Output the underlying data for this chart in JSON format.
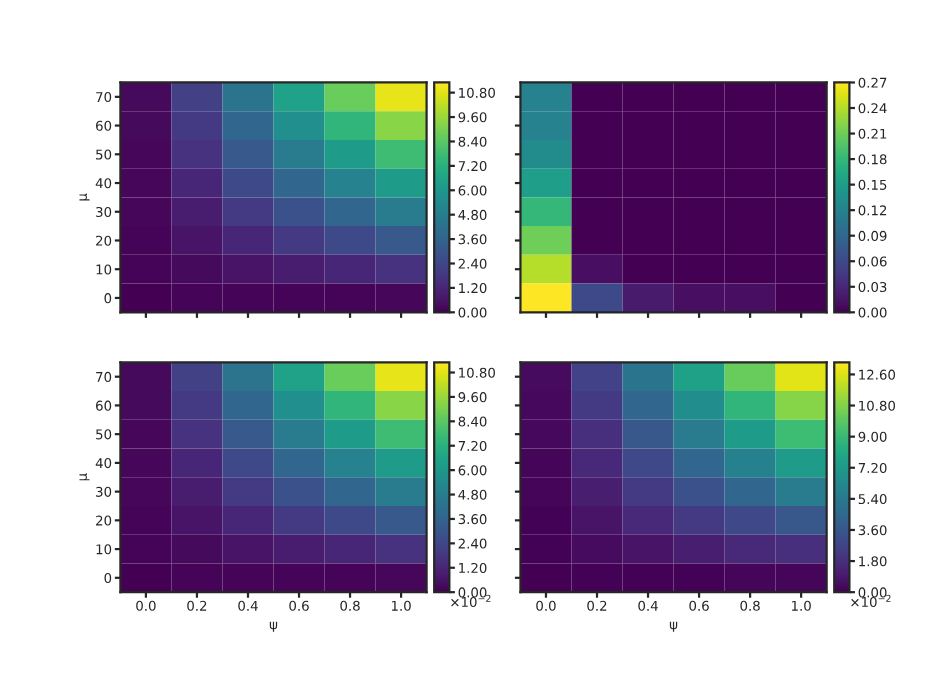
{
  "chart_data": [
    {
      "type": "heatmap",
      "ylabel": "μ",
      "categories": [
        null,
        null,
        null,
        null,
        null,
        null
      ],
      "y_categories": [
        "70",
        "60",
        "50",
        "40",
        "30",
        "20",
        "10",
        "0"
      ],
      "cells": [
        [
          0.3,
          2.2,
          4.3,
          6.5,
          8.7,
          10.9
        ],
        [
          0.3,
          1.9,
          3.7,
          5.6,
          7.4,
          9.3
        ],
        [
          0.2,
          1.6,
          3.1,
          4.7,
          6.2,
          7.8
        ],
        [
          0.2,
          1.2,
          2.5,
          3.7,
          5.0,
          6.2
        ],
        [
          0.2,
          0.9,
          1.9,
          2.8,
          3.7,
          4.7
        ],
        [
          0.1,
          0.6,
          1.2,
          1.9,
          2.5,
          3.1
        ],
        [
          0.1,
          0.3,
          0.6,
          0.9,
          1.2,
          1.6
        ],
        [
          0.0,
          0.1,
          0.1,
          0.1,
          0.1,
          0.2
        ]
      ],
      "clim": [
        0,
        11.3
      ],
      "cticks": [
        {
          "value": 0,
          "label": "0.00"
        },
        {
          "value": 1.2,
          "label": "1.20"
        },
        {
          "value": 2.4,
          "label": "2.40"
        },
        {
          "value": 3.6,
          "label": "3.60"
        },
        {
          "value": 4.8,
          "label": "4.80"
        },
        {
          "value": 6.0,
          "label": "6.00"
        },
        {
          "value": 7.2,
          "label": "7.20"
        },
        {
          "value": 8.4,
          "label": "8.40"
        },
        {
          "value": 9.6,
          "label": "9.60"
        },
        {
          "value": 10.8,
          "label": "10.80"
        }
      ]
    },
    {
      "type": "heatmap",
      "tick_labels": false,
      "categories": [
        "0.0",
        "0.2",
        "0.4",
        "0.6",
        "0.8",
        "1.0"
      ],
      "y_categories": [
        "70",
        "60",
        "50",
        "40",
        "30",
        "20",
        "10",
        "0"
      ],
      "cells": [
        [
          0.12,
          0.0,
          0.0,
          0.0,
          0.0,
          0.0
        ],
        [
          0.12,
          0.0,
          0.0,
          0.0,
          0.0,
          0.0
        ],
        [
          0.13,
          0.0,
          0.0,
          0.0,
          0.0,
          0.0
        ],
        [
          0.15,
          0.0,
          0.0,
          0.0,
          0.0,
          0.0
        ],
        [
          0.18,
          0.0,
          0.0,
          0.0,
          0.0,
          0.0
        ],
        [
          0.21,
          0.0,
          0.0,
          0.0,
          0.0,
          0.0
        ],
        [
          0.24,
          0.01,
          0.0,
          0.0,
          0.0,
          0.0
        ],
        [
          0.27,
          0.06,
          0.02,
          0.01,
          0.01,
          0.0
        ]
      ],
      "clim": [
        0,
        0.27
      ],
      "cticks": [
        {
          "value": 0,
          "label": "0.00"
        },
        {
          "value": 0.03,
          "label": "0.03"
        },
        {
          "value": 0.06,
          "label": "0.06"
        },
        {
          "value": 0.09,
          "label": "0.09"
        },
        {
          "value": 0.12,
          "label": "0.12"
        },
        {
          "value": 0.15,
          "label": "0.15"
        },
        {
          "value": 0.18,
          "label": "0.18"
        },
        {
          "value": 0.21,
          "label": "0.21"
        },
        {
          "value": 0.24,
          "label": "0.24"
        },
        {
          "value": 0.27,
          "label": "0.27"
        }
      ]
    },
    {
      "type": "heatmap",
      "xlabel": "ψ",
      "ylabel": "μ",
      "categories": [
        "0.0",
        "0.2",
        "0.4",
        "0.6",
        "0.8",
        "1.0"
      ],
      "y_categories": [
        "70",
        "60",
        "50",
        "40",
        "30",
        "20",
        "10",
        "0"
      ],
      "cells": [
        [
          0.3,
          2.2,
          4.3,
          6.5,
          8.7,
          10.9
        ],
        [
          0.3,
          1.9,
          3.7,
          5.6,
          7.4,
          9.3
        ],
        [
          0.2,
          1.6,
          3.1,
          4.7,
          6.2,
          7.8
        ],
        [
          0.2,
          1.2,
          2.5,
          3.7,
          5.0,
          6.2
        ],
        [
          0.2,
          0.9,
          1.9,
          2.8,
          3.7,
          4.7
        ],
        [
          0.1,
          0.6,
          1.2,
          1.9,
          2.5,
          3.1
        ],
        [
          0.1,
          0.3,
          0.6,
          0.9,
          1.2,
          1.6
        ],
        [
          0.0,
          0.1,
          0.1,
          0.1,
          0.1,
          0.2
        ]
      ],
      "clim": [
        0,
        11.3
      ],
      "cticks": [
        {
          "value": 0,
          "label": "0.00"
        },
        {
          "value": 1.2,
          "label": "1.20"
        },
        {
          "value": 2.4,
          "label": "2.40"
        },
        {
          "value": 3.6,
          "label": "3.60"
        },
        {
          "value": 4.8,
          "label": "4.80"
        },
        {
          "value": 6.0,
          "label": "6.00"
        },
        {
          "value": 7.2,
          "label": "7.20"
        },
        {
          "value": 8.4,
          "label": "8.40"
        },
        {
          "value": 9.6,
          "label": "9.60"
        },
        {
          "value": 10.8,
          "label": "10.80"
        }
      ],
      "annotations": [
        "×10$^{−2}$"
      ]
    },
    {
      "type": "heatmap",
      "xlabel": "ψ",
      "categories": [
        "0.0",
        "0.2",
        "0.4",
        "0.6",
        "0.8",
        "1.0"
      ],
      "y_categories": [
        null,
        null,
        null,
        null,
        null,
        null,
        null,
        null
      ],
      "cells": [
        [
          0.4,
          2.6,
          5.1,
          7.6,
          10.2,
          12.7
        ],
        [
          0.3,
          2.2,
          4.4,
          6.5,
          8.7,
          10.9
        ],
        [
          0.3,
          1.8,
          3.6,
          5.5,
          7.3,
          9.1
        ],
        [
          0.2,
          1.5,
          2.9,
          4.4,
          5.8,
          7.3
        ],
        [
          0.2,
          1.1,
          2.2,
          3.3,
          4.4,
          5.5
        ],
        [
          0.1,
          0.7,
          1.5,
          2.2,
          2.9,
          3.6
        ],
        [
          0.1,
          0.4,
          0.7,
          1.1,
          1.5,
          1.8
        ],
        [
          0.0,
          0.1,
          0.1,
          0.1,
          0.2,
          0.2
        ]
      ],
      "clim": [
        0,
        13.3
      ],
      "cticks": [
        {
          "value": 0,
          "label": "0.00"
        },
        {
          "value": 1.8,
          "label": "1.80"
        },
        {
          "value": 3.6,
          "label": "3.60"
        },
        {
          "value": 5.4,
          "label": "5.40"
        },
        {
          "value": 7.2,
          "label": "7.20"
        },
        {
          "value": 9.0,
          "label": "9.00"
        },
        {
          "value": 10.8,
          "label": "10.80"
        },
        {
          "value": 12.6,
          "label": "12.60"
        }
      ],
      "annotations": [
        "×10$^{−2}$"
      ]
    }
  ]
}
